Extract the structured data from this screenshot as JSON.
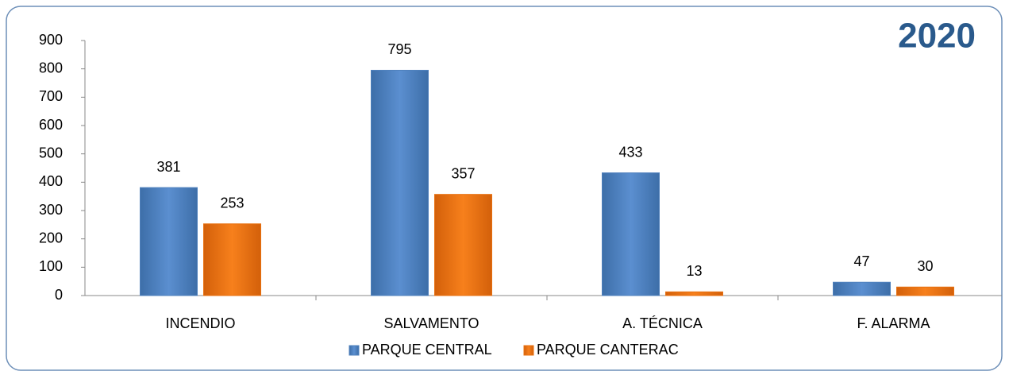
{
  "chart_data": {
    "type": "bar",
    "title": "2020",
    "categories": [
      "INCENDIO",
      "SALVAMENTO",
      "A. TÉCNICA",
      "F. ALARMA"
    ],
    "series": [
      {
        "name": "PARQUE CENTRAL",
        "color": "#4f81bd",
        "values": [
          381,
          795,
          433,
          47
        ]
      },
      {
        "name": "PARQUE CANTERAC",
        "color": "#e8700f",
        "values": [
          253,
          357,
          13,
          30
        ]
      }
    ],
    "ylim": [
      0,
      900
    ],
    "yticks": [
      0,
      100,
      200,
      300,
      400,
      500,
      600,
      700,
      800,
      900
    ],
    "grid": false,
    "legend": "bottom"
  }
}
